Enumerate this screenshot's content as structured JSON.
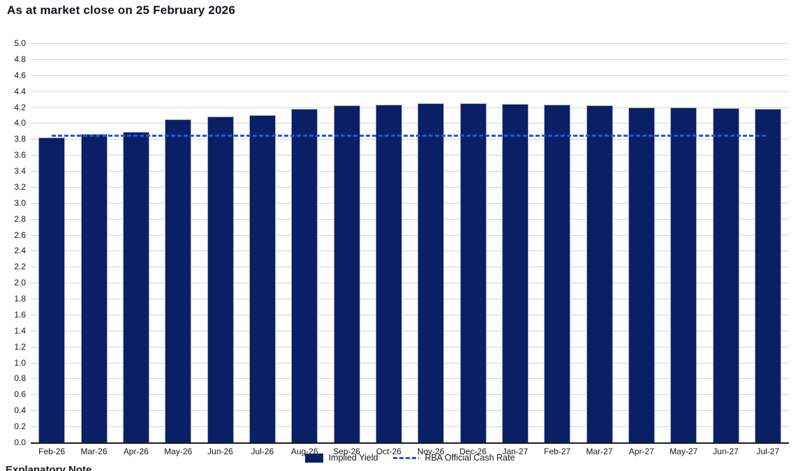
{
  "title": "As at market close on 25 February 2026",
  "footer_note": "Explanatory Note",
  "legend": {
    "implied_yield": "Implied Yield",
    "cash_rate": "RBA Official Cash Rate"
  },
  "colors": {
    "bar_fill": "#0a2066",
    "bar_border": "#a9b0c6",
    "dash_line": "#2355e0",
    "gridline": "#d4d4d4",
    "axis_line": "#1b1b1b",
    "text": "#141414"
  },
  "chart_data": {
    "type": "bar",
    "title": "As at market close on 25 February 2026",
    "categories": [
      "Feb-26",
      "Mar-26",
      "Apr-26",
      "May-26",
      "Jun-26",
      "Jul-26",
      "Aug-26",
      "Sep-26",
      "Oct-26",
      "Nov-26",
      "Dec-26",
      "Jan-27",
      "Feb-27",
      "Mar-27",
      "Apr-27",
      "May-27",
      "Jun-27",
      "Jul-27"
    ],
    "series": [
      {
        "name": "Implied Yield",
        "type": "bar",
        "values": [
          3.82,
          3.86,
          3.89,
          4.05,
          4.08,
          4.1,
          4.18,
          4.22,
          4.23,
          4.25,
          4.25,
          4.24,
          4.23,
          4.22,
          4.2,
          4.2,
          4.19,
          4.18
        ]
      },
      {
        "name": "RBA Official Cash Rate",
        "type": "line",
        "line_style": "dashed",
        "value": 3.85
      }
    ],
    "xlabel": "",
    "ylabel": "",
    "ylim": [
      0.0,
      5.0
    ],
    "ytick_step": 0.2,
    "ytick_labels": [
      "5.0",
      "4.8",
      "4.6",
      "4.4",
      "4.2",
      "4.0",
      "3.8",
      "3.6",
      "3.4",
      "3.2",
      "3.0",
      "2.8",
      "2.6",
      "2.4",
      "2.2",
      "2.0",
      "1.8",
      "1.6",
      "1.4",
      "1.2",
      "1.0",
      "0.8",
      "0.6",
      "0.4",
      "0.2",
      "0.0"
    ],
    "grid": "horizontal",
    "legend_position": "bottom"
  }
}
